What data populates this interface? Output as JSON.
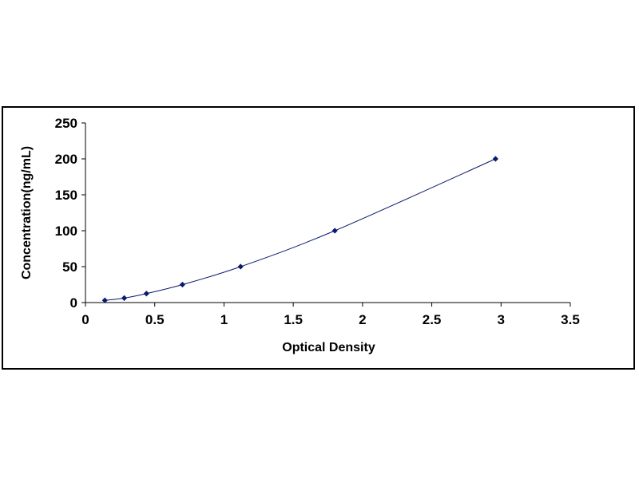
{
  "chart_data": {
    "type": "scatter",
    "title": "",
    "xlabel": "Optical Density",
    "ylabel": "Concentration(ng/mL)",
    "xlim": [
      0,
      3.5
    ],
    "ylim": [
      0,
      250
    ],
    "x_ticks": [
      0,
      0.5,
      1,
      1.5,
      2,
      2.5,
      3,
      3.5
    ],
    "x_tick_labels": [
      "0",
      "0.5",
      "1",
      "1.5",
      "2",
      "2.5",
      "3",
      "3.5"
    ],
    "y_ticks": [
      0,
      50,
      100,
      150,
      200,
      250
    ],
    "y_tick_labels": [
      "0",
      "50",
      "100",
      "150",
      "200",
      "250"
    ],
    "grid": false,
    "legend": "none",
    "series": [
      {
        "x": [
          0.14,
          0.28,
          0.44,
          0.7,
          1.12,
          1.8,
          2.96
        ],
        "y": [
          3.125,
          6.25,
          12.5,
          25,
          50,
          100,
          200
        ],
        "marker": "diamond",
        "trendline": "smooth curve"
      }
    ],
    "colors": {
      "marker": "#0a1a6e",
      "line": "#0a1a6e",
      "axis": "#000000"
    }
  }
}
